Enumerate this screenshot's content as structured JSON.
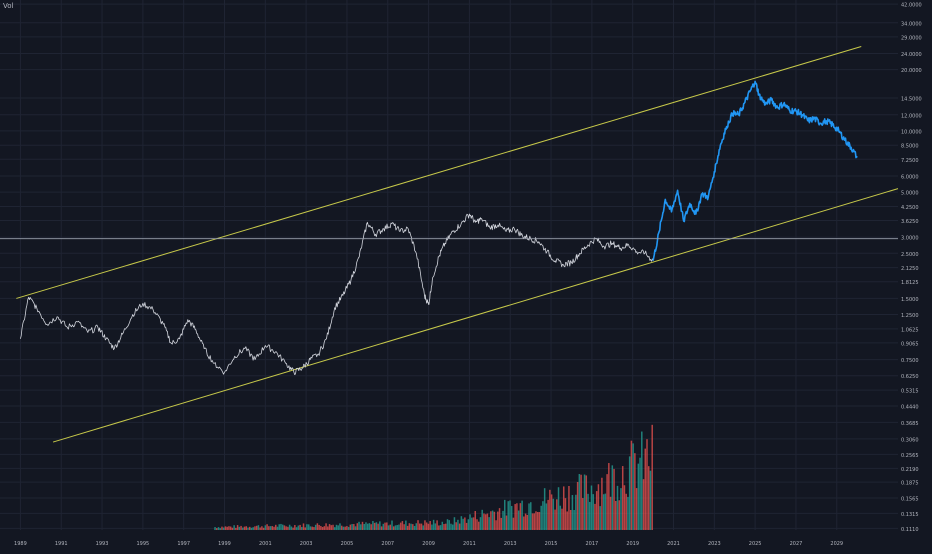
{
  "corner_label": "Vol",
  "colors": {
    "background": "#131722",
    "grid": "#1f2433",
    "axis_text": "#b2b5be",
    "history_line": "#d1d4dc",
    "projection_line": "#2196f3",
    "channel": "#c7c94a",
    "crosshair": "#9aa0ad",
    "volume_up": "#26a69a",
    "volume_down": "#ef5350"
  },
  "chart_data": {
    "type": "line",
    "title": "",
    "xlabel": "",
    "ylabel": "",
    "y_scale": "log",
    "xlim": [
      1988.0,
      2032.0
    ],
    "ylim": [
      0.109,
      44.0
    ],
    "grid": true,
    "x_ticks": [
      "1989",
      "1991",
      "1993",
      "1995",
      "1997",
      "1999",
      "2001",
      "2003",
      "2005",
      "2007",
      "2009",
      "2011",
      "2013",
      "2015",
      "2017",
      "2019",
      "2021",
      "2023",
      "2025",
      "2027",
      "2029"
    ],
    "y_ticks": [
      "42.0000",
      "34.0000",
      "29.0000",
      "24.0000",
      "20.0000",
      "14.5000",
      "12.0000",
      "10.0000",
      "8.5000",
      "7.2500",
      "6.0000",
      "5.0000",
      "4.2500",
      "3.6250",
      "3.0000",
      "2.5000",
      "2.1250",
      "1.8125",
      "1.5000",
      "1.2500",
      "1.0625",
      "0.9065",
      "0.7500",
      "0.6250",
      "0.5315",
      "0.4440",
      "0.3685",
      "0.3060",
      "0.2565",
      "0.2190",
      "0.1875",
      "0.1565",
      "0.1315",
      "0.1110"
    ],
    "horizontal_line": 2.95,
    "series": [
      {
        "role": "history",
        "color": "#d1d4dc",
        "x": [
          1989.0,
          1989.4,
          1989.8,
          1990.3,
          1990.8,
          1991.3,
          1991.8,
          1992.3,
          1992.8,
          1993.2,
          1993.6,
          1994.0,
          1994.5,
          1995.0,
          1995.5,
          1996.0,
          1996.4,
          1996.8,
          1997.2,
          1997.6,
          1998.0,
          1998.5,
          1999.0,
          1999.5,
          2000.0,
          2000.5,
          2001.0,
          2001.5,
          2002.0,
          2002.4,
          2002.8,
          2003.2,
          2003.6,
          2004.0,
          2004.4,
          2004.8,
          2005.2,
          2005.6,
          2006.0,
          2006.4,
          2006.8,
          2007.2,
          2007.6,
          2008.0,
          2008.4,
          2008.8,
          2009.0,
          2009.2,
          2009.5,
          2009.8,
          2010.2,
          2010.6,
          2011.0,
          2011.3,
          2011.6,
          2012.0,
          2012.4,
          2012.8,
          2013.2,
          2013.6,
          2014.0,
          2014.4,
          2014.8,
          2015.2,
          2015.6,
          2016.0,
          2016.4,
          2016.8,
          2017.2,
          2017.6,
          2018.0,
          2018.4,
          2018.8,
          2019.2,
          2019.6,
          2020.0
        ],
        "y": [
          0.95,
          1.52,
          1.35,
          1.12,
          1.22,
          1.08,
          1.15,
          1.02,
          1.08,
          0.95,
          0.85,
          1.0,
          1.25,
          1.42,
          1.32,
          1.12,
          0.9,
          0.95,
          1.18,
          1.05,
          0.85,
          0.72,
          0.65,
          0.78,
          0.85,
          0.75,
          0.88,
          0.82,
          0.72,
          0.65,
          0.68,
          0.75,
          0.8,
          0.95,
          1.35,
          1.55,
          1.85,
          2.4,
          3.55,
          3.1,
          3.3,
          3.5,
          3.2,
          3.3,
          2.5,
          1.55,
          1.4,
          1.9,
          2.4,
          2.8,
          3.2,
          3.5,
          3.9,
          3.55,
          3.7,
          3.35,
          3.45,
          3.2,
          3.3,
          3.05,
          2.95,
          2.85,
          2.55,
          2.3,
          2.2,
          2.25,
          2.5,
          2.75,
          2.95,
          2.7,
          2.8,
          2.65,
          2.75,
          2.55,
          2.5,
          2.3
        ]
      },
      {
        "role": "projection",
        "color": "#2196f3",
        "x": [
          2020.0,
          2020.3,
          2020.6,
          2020.9,
          2021.2,
          2021.5,
          2021.8,
          2022.1,
          2022.4,
          2022.7,
          2023.0,
          2023.3,
          2023.6,
          2023.9,
          2024.2,
          2024.5,
          2024.8,
          2025.0,
          2025.2,
          2025.5,
          2025.8,
          2026.1,
          2026.4,
          2026.7,
          2027.0,
          2027.3,
          2027.6,
          2027.9,
          2028.2,
          2028.5,
          2028.8,
          2029.1,
          2029.4,
          2029.7,
          2030.0
        ],
        "y": [
          2.3,
          3.2,
          4.6,
          4.0,
          5.1,
          3.6,
          4.4,
          3.9,
          4.9,
          4.7,
          6.3,
          8.5,
          10.5,
          12.2,
          12.0,
          13.8,
          16.0,
          17.5,
          15.0,
          13.5,
          14.2,
          13.0,
          13.6,
          12.6,
          12.5,
          12.0,
          11.2,
          11.5,
          10.9,
          11.2,
          10.7,
          10.0,
          9.0,
          8.3,
          7.4
        ]
      }
    ],
    "channel_lines": [
      {
        "x": [
          1988.8,
          2030.2
        ],
        "y": [
          1.5,
          26.0
        ]
      },
      {
        "x": [
          1990.6,
          2032.0
        ],
        "y": [
          0.295,
          5.2
        ]
      }
    ],
    "volume_series": {
      "name": "Vol",
      "x_start": 1998.5,
      "x_end": 2020.0,
      "max_value_pct": 100
    }
  }
}
